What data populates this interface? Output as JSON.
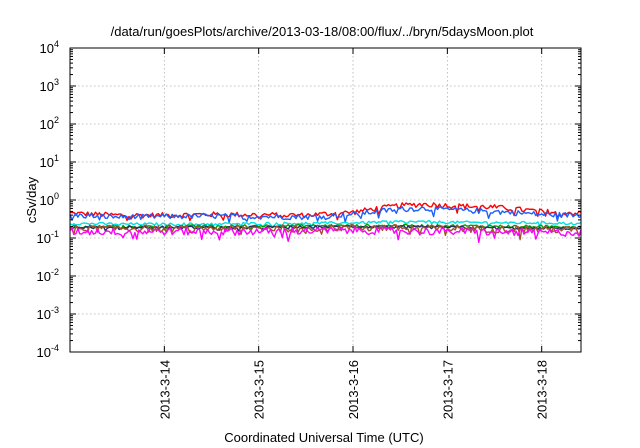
{
  "chart_data": {
    "type": "line",
    "title": "/data/run/goesPlots/archive/2013-03-18/08:00/flux/../bryn/5daysMoon.plot",
    "xlabel": "Coordinated Universal Time (UTC)",
    "ylabel": "cSv/day",
    "y_scale": "log",
    "ylim": [
      0.0001,
      10000
    ],
    "y_ticks": [
      {
        "base": "10",
        "exp": "-4",
        "value": 0.0001
      },
      {
        "base": "10",
        "exp": "-3",
        "value": 0.001
      },
      {
        "base": "10",
        "exp": "-2",
        "value": 0.01
      },
      {
        "base": "10",
        "exp": "-1",
        "value": 0.1
      },
      {
        "base": "10",
        "exp": "0",
        "value": 1
      },
      {
        "base": "10",
        "exp": "1",
        "value": 10
      },
      {
        "base": "10",
        "exp": "2",
        "value": 100
      },
      {
        "base": "10",
        "exp": "3",
        "value": 1000
      },
      {
        "base": "10",
        "exp": "4",
        "value": 10000
      }
    ],
    "xlim": [
      "2013-03-13T00:00",
      "2013-03-18T10:00"
    ],
    "x_ticks": [
      {
        "label": "2013-3-14",
        "value": "2013-03-14T00:00"
      },
      {
        "label": "2013-3-15",
        "value": "2013-03-15T00:00"
      },
      {
        "label": "2013-3-16",
        "value": "2013-03-16T00:00"
      },
      {
        "label": "2013-3-17",
        "value": "2013-03-17T00:00"
      },
      {
        "label": "2013-3-18",
        "value": "2013-03-18T00:00"
      }
    ],
    "grid": true,
    "legend": "none",
    "series": [
      {
        "color": "#ff0000",
        "points": [
          [
            "2013-03-13T00:00",
            0.45
          ],
          [
            "2013-03-13T12:00",
            0.4
          ],
          [
            "2013-03-14T00:00",
            0.4
          ],
          [
            "2013-03-14T12:00",
            0.42
          ],
          [
            "2013-03-15T00:00",
            0.41
          ],
          [
            "2013-03-15T12:00",
            0.4
          ],
          [
            "2013-03-16T00:00",
            0.48
          ],
          [
            "2013-03-16T06:00",
            0.6
          ],
          [
            "2013-03-16T12:00",
            0.72
          ],
          [
            "2013-03-16T18:00",
            0.78
          ],
          [
            "2013-03-17T00:00",
            0.72
          ],
          [
            "2013-03-17T12:00",
            0.65
          ],
          [
            "2013-03-18T00:00",
            0.5
          ],
          [
            "2013-03-18T10:00",
            0.45
          ]
        ]
      },
      {
        "color": "#1a5fff",
        "points": [
          [
            "2013-03-13T00:00",
            0.4
          ],
          [
            "2013-03-13T12:00",
            0.36
          ],
          [
            "2013-03-14T00:00",
            0.37
          ],
          [
            "2013-03-14T12:00",
            0.38
          ],
          [
            "2013-03-15T00:00",
            0.37
          ],
          [
            "2013-03-15T12:00",
            0.36
          ],
          [
            "2013-03-16T00:00",
            0.42
          ],
          [
            "2013-03-16T06:00",
            0.5
          ],
          [
            "2013-03-16T12:00",
            0.58
          ],
          [
            "2013-03-16T18:00",
            0.6
          ],
          [
            "2013-03-17T00:00",
            0.56
          ],
          [
            "2013-03-17T12:00",
            0.5
          ],
          [
            "2013-03-18T00:00",
            0.42
          ],
          [
            "2013-03-18T10:00",
            0.4
          ]
        ]
      },
      {
        "color": "#00e0e0",
        "points": [
          [
            "2013-03-13T00:00",
            0.24
          ],
          [
            "2013-03-14T00:00",
            0.23
          ],
          [
            "2013-03-15T00:00",
            0.24
          ],
          [
            "2013-03-16T00:00",
            0.25
          ],
          [
            "2013-03-16T12:00",
            0.27
          ],
          [
            "2013-03-17T00:00",
            0.26
          ],
          [
            "2013-03-18T00:00",
            0.25
          ],
          [
            "2013-03-18T10:00",
            0.24
          ]
        ]
      },
      {
        "color": "#00a000",
        "points": [
          [
            "2013-03-13T00:00",
            0.2
          ],
          [
            "2013-03-14T00:00",
            0.2
          ],
          [
            "2013-03-15T00:00",
            0.21
          ],
          [
            "2013-03-16T00:00",
            0.21
          ],
          [
            "2013-03-17T00:00",
            0.21
          ],
          [
            "2013-03-18T00:00",
            0.2
          ],
          [
            "2013-03-18T10:00",
            0.2
          ]
        ]
      },
      {
        "color": "#2a2a60",
        "points": [
          [
            "2013-03-13T00:00",
            0.19
          ],
          [
            "2013-03-14T00:00",
            0.19
          ],
          [
            "2013-03-15T00:00",
            0.19
          ],
          [
            "2013-03-16T00:00",
            0.2
          ],
          [
            "2013-03-17T00:00",
            0.19
          ],
          [
            "2013-03-18T00:00",
            0.18
          ],
          [
            "2013-03-18T10:00",
            0.18
          ]
        ]
      },
      {
        "color": "#a0522d",
        "points": [
          [
            "2013-03-13T00:00",
            0.18
          ],
          [
            "2013-03-14T00:00",
            0.18
          ],
          [
            "2013-03-15T00:00",
            0.18
          ],
          [
            "2013-03-16T00:00",
            0.19
          ],
          [
            "2013-03-17T00:00",
            0.18
          ],
          [
            "2013-03-18T00:00",
            0.17
          ],
          [
            "2013-03-18T10:00",
            0.17
          ]
        ]
      },
      {
        "color": "#ff00ff",
        "points": [
          [
            "2013-03-13T00:00",
            0.15
          ],
          [
            "2013-03-14T00:00",
            0.15
          ],
          [
            "2013-03-15T00:00",
            0.15
          ],
          [
            "2013-03-16T00:00",
            0.16
          ],
          [
            "2013-03-17T00:00",
            0.15
          ],
          [
            "2013-03-18T00:00",
            0.14
          ],
          [
            "2013-03-18T10:00",
            0.14
          ]
        ]
      }
    ]
  }
}
